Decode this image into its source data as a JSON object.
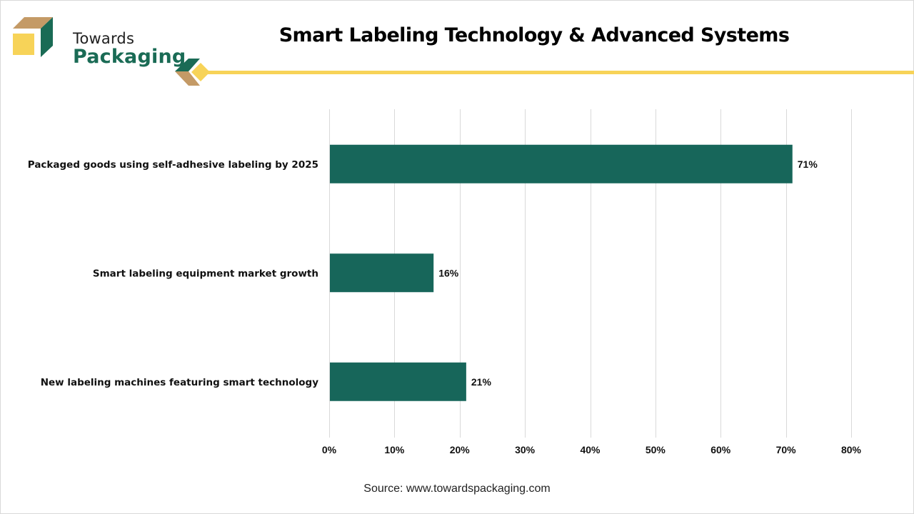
{
  "brand": {
    "line1": "Towards",
    "line2": "Packaging",
    "colors": {
      "green": "#1a6b55",
      "tan": "#c49a66",
      "yellow": "#f7d358"
    }
  },
  "header": {
    "title": "Smart Labeling Technology & Advanced Systems"
  },
  "footer": {
    "source": "Source: www.towardspackaging.com"
  },
  "chart_data": {
    "type": "bar",
    "orientation": "horizontal",
    "title": "Smart Labeling Technology & Advanced Systems",
    "categories": [
      "Packaged goods using self-adhesive labeling by 2025",
      "Smart labeling equipment market growth",
      "New labeling machines featuring smart technology"
    ],
    "values": [
      71,
      16,
      21
    ],
    "data_labels": [
      "71%",
      "16%",
      "21%"
    ],
    "xlabel": "",
    "ylabel": "",
    "xlim": [
      0,
      80
    ],
    "x_ticks": [
      0,
      10,
      20,
      30,
      40,
      50,
      60,
      70,
      80
    ],
    "x_tick_labels": [
      "0%",
      "10%",
      "20%",
      "30%",
      "40%",
      "50%",
      "60%",
      "70%",
      "80%"
    ],
    "grid": "vertical",
    "legend": "none",
    "bar_color": "#17665a"
  }
}
